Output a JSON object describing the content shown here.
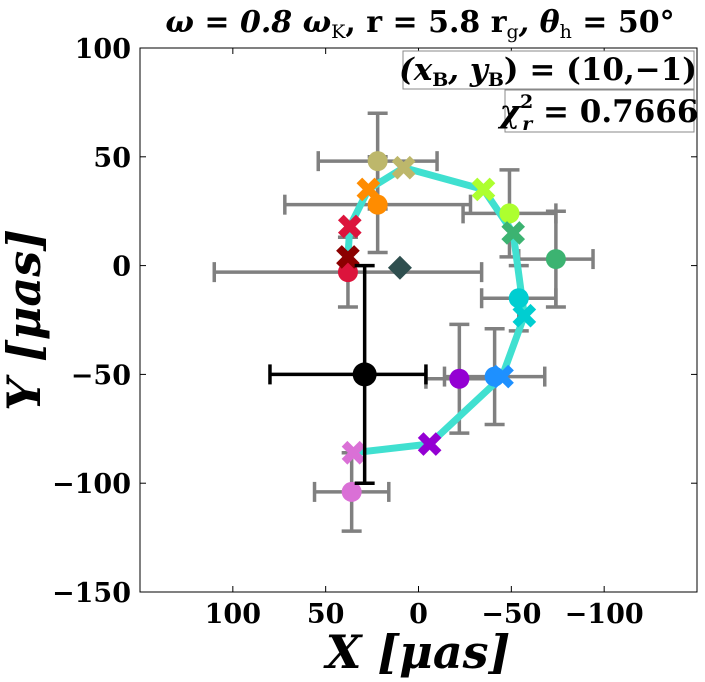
{
  "chart_data": {
    "type": "scatter",
    "title": "ω = 0.8 ω_K, r = 5.8 r_g, θ_h = 50°",
    "title_parts": {
      "omega": "ω = 0.8 ω",
      "omega_sub": "K",
      "radius": ", r = 5.8 r",
      "radius_sub": "g",
      "theta": ", θ",
      "theta_sub": "h",
      "theta_val": " = 50°"
    },
    "xlabel": "X [μas]",
    "ylabel": "Y [μas]",
    "xlim": [
      150,
      -150
    ],
    "ylim": [
      -150,
      100
    ],
    "x_reversed": true,
    "xticks": [
      100,
      50,
      0,
      -50,
      -100
    ],
    "xtick_labels": [
      "100",
      "50",
      "0",
      "−50",
      "−100"
    ],
    "yticks": [
      100,
      50,
      0,
      -50,
      -100,
      -150
    ],
    "ytick_labels": [
      "100",
      "50",
      "0",
      "−50",
      "−100",
      "−150"
    ],
    "annotations": {
      "position": "top-right",
      "offset_label": "(x_B, y_B) = (10,−1)",
      "offset_lhs": "(x",
      "offset_sub1": "B",
      "offset_mid": ", y",
      "offset_sub2": "B",
      "offset_rhs": ") = (10,−1)",
      "chi_label": "χ_r² = 0.7666",
      "chi_sym": "χ",
      "chi_sub": "r",
      "chi_sup": "2",
      "chi_rhs": " = 0.7666"
    },
    "reference_point": {
      "name": "centroid",
      "x": 29,
      "y": -50,
      "xerr": [
        51,
        33
      ],
      "yerr": [
        50,
        50
      ],
      "color": "#000000"
    },
    "black_hole_marker": {
      "name": "diamond",
      "x": 10,
      "y": -1,
      "color": "#2f4f4f"
    },
    "model_track": {
      "name": "model",
      "color": "#40e0d0",
      "points": [
        {
          "x": 35,
          "y": -86,
          "color": "#da70d6"
        },
        {
          "x": -6,
          "y": -82,
          "color": "#9400d3"
        },
        {
          "x": -45,
          "y": -51,
          "color": "#1e90ff"
        },
        {
          "x": -57,
          "y": -23,
          "color": "#00ced1"
        },
        {
          "x": -51,
          "y": 15,
          "color": "#3cb371"
        },
        {
          "x": -35,
          "y": 35,
          "color": "#adff2f"
        },
        {
          "x": 8,
          "y": 45,
          "color": "#bdb76b"
        },
        {
          "x": 27,
          "y": 35,
          "color": "#ff8c00"
        },
        {
          "x": 37,
          "y": 18,
          "color": "#dc143c"
        },
        {
          "x": 38,
          "y": 4,
          "color": "#8b0000"
        }
      ]
    },
    "observations": [
      {
        "x": 36,
        "y": -104,
        "xerr": 20,
        "yerr": 18,
        "color": "#da70d6"
      },
      {
        "x": -22,
        "y": -52,
        "xerr": 18,
        "yerr": 25,
        "color": "#9400d3"
      },
      {
        "x": -41,
        "y": -51,
        "xerr": 27,
        "yerr": 22,
        "color": "#1e90ff"
      },
      {
        "x": -54,
        "y": -15,
        "xerr": 20,
        "yerr": 15,
        "color": "#00ced1"
      },
      {
        "x": -74,
        "y": 3,
        "xerr": 20,
        "yerr": 22,
        "color": "#3cb371"
      },
      {
        "x": -49,
        "y": 24,
        "xerr": 25,
        "yerr": 20,
        "color": "#adff2f"
      },
      {
        "x": 22,
        "y": 48,
        "xerr": 32,
        "yerr": 22,
        "color": "#bdb76b"
      },
      {
        "x": 22,
        "y": 28,
        "xerr": 50,
        "yerr": 22,
        "color": "#ff8c00"
      },
      {
        "x": 38,
        "y": -3,
        "xerr": 72,
        "yerr": 16,
        "color": "#dc143c"
      }
    ]
  }
}
